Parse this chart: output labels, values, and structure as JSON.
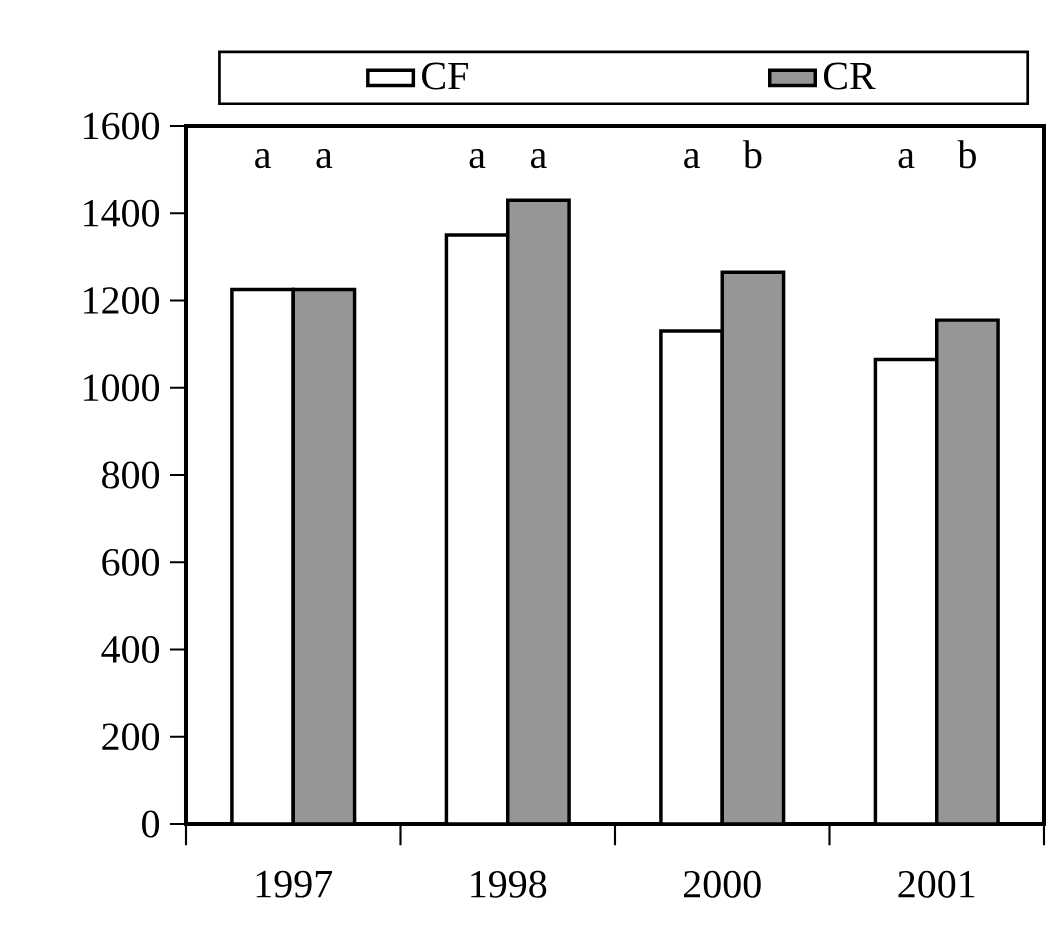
{
  "chart_data": {
    "type": "bar",
    "categories": [
      "1997",
      "1998",
      "2000",
      "2001"
    ],
    "series": [
      {
        "name": "CF",
        "color": "#ffffff",
        "values": [
          1225,
          1350,
          1130,
          1065
        ]
      },
      {
        "name": "CR",
        "color": "#969699",
        "values": [
          1225,
          1430,
          1265,
          1155
        ]
      }
    ],
    "ylim": [
      0,
      1600
    ],
    "yticks": [
      0,
      200,
      400,
      600,
      800,
      1000,
      1200,
      1400,
      1600
    ],
    "legend": "top",
    "grid": false,
    "annotations": [
      "a",
      "a",
      "a",
      "a",
      "a",
      "b",
      "a",
      "b"
    ]
  }
}
